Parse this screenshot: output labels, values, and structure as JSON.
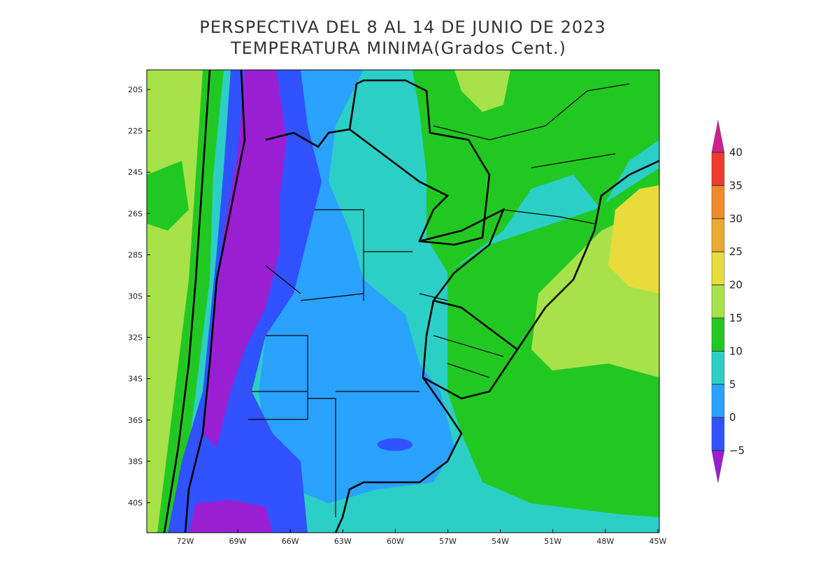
{
  "title": [
    "PERSPECTIVA DEL 8 AL 14 DE JUNIO DE 2023",
    "TEMPERATURA MINIMA(Grados Cent.)"
  ],
  "lat_labels": [
    "20S",
    "22S",
    "24S",
    "26S",
    "28S",
    "30S",
    "32S",
    "34S",
    "36S",
    "38S",
    "40S"
  ],
  "lon_labels": [
    "72W",
    "69W",
    "66W",
    "63W",
    "60W",
    "57W",
    "54W",
    "51W",
    "48W",
    "45W"
  ],
  "colorbar": {
    "labels": [
      "40",
      "35",
      "30",
      "25",
      "20",
      "15",
      "10",
      "5",
      "0",
      "−5"
    ],
    "colors": [
      "#d0208c",
      "#f03a30",
      "#f08a2a",
      "#e8aa30",
      "#e8dc3a",
      "#a8e24a",
      "#22c822",
      "#2ccfc6",
      "#2aa2ff",
      "#3052ff",
      "#9a1fd2"
    ]
  }
}
